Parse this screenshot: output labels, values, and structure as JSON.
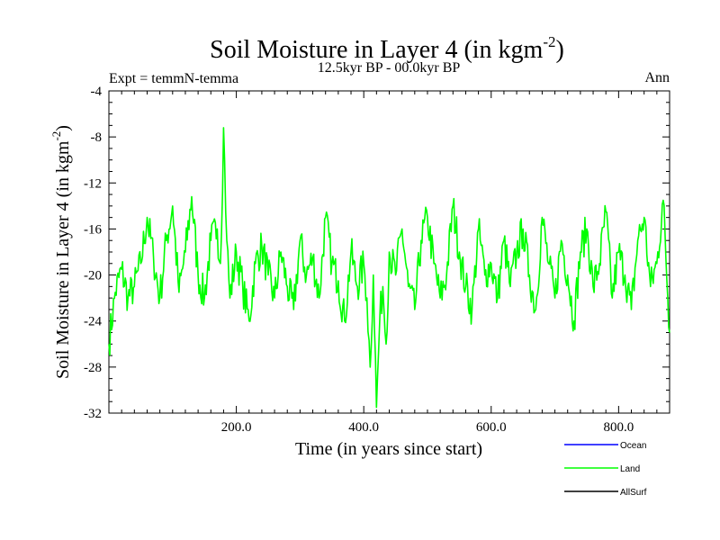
{
  "chart_data": {
    "type": "line",
    "title_main": "Soil Moisture in Layer 4 (in kgm",
    "title_sup": "-2",
    "title_close": ")",
    "subtitle": "12.5kyr BP - 00.0kyr BP",
    "expt_label": "Expt = temmN-temma",
    "season_label": "Ann",
    "xlabel": "Time (in years since start)",
    "ylabel_main": "Soil Moisture in Layer 4 (in kgm",
    "ylabel_sup": "-2",
    "ylabel_close": ")",
    "xlim": [
      0,
      880
    ],
    "ylim": [
      -32,
      -4
    ],
    "x_ticks": [
      200,
      400,
      600,
      800
    ],
    "x_tick_labels": [
      "200.0",
      "400.0",
      "600.0",
      "800.0"
    ],
    "y_ticks": [
      -4,
      -8,
      -12,
      -16,
      -20,
      -24,
      -28,
      -32
    ],
    "y_tick_labels": [
      "-4",
      "-8",
      "-12",
      "-16",
      "-20",
      "-24",
      "-28",
      "-32"
    ],
    "legend": [
      {
        "name": "Ocean",
        "color": "#0000ff"
      },
      {
        "name": "Land",
        "color": "#00ff00"
      },
      {
        "name": "AllSurf",
        "color": "#000000"
      }
    ],
    "series": [
      {
        "name": "Land",
        "color": "#00ff00",
        "x": [
          0,
          10,
          20,
          30,
          40,
          50,
          60,
          70,
          80,
          90,
          100,
          110,
          120,
          130,
          140,
          150,
          160,
          170,
          175,
          180,
          185,
          190,
          200,
          210,
          220,
          230,
          240,
          250,
          260,
          270,
          280,
          290,
          300,
          310,
          320,
          330,
          340,
          350,
          360,
          370,
          380,
          390,
          400,
          405,
          410,
          415,
          420,
          425,
          430,
          435,
          440,
          450,
          460,
          470,
          480,
          490,
          500,
          510,
          520,
          530,
          540,
          550,
          560,
          570,
          580,
          590,
          600,
          610,
          620,
          630,
          640,
          650,
          660,
          670,
          680,
          690,
          700,
          710,
          720,
          730,
          740,
          750,
          760,
          770,
          780,
          790,
          800,
          810,
          820,
          830,
          840,
          850,
          860,
          870,
          880
        ],
        "values": [
          -26,
          -21.5,
          -19.5,
          -22,
          -21,
          -19,
          -15,
          -18.5,
          -22,
          -17,
          -14,
          -21.5,
          -18,
          -13.2,
          -20,
          -22,
          -17,
          -16,
          -19,
          -7.2,
          -17,
          -22,
          -18,
          -21,
          -24,
          -19,
          -17.5,
          -20,
          -22,
          -18,
          -21,
          -23,
          -17,
          -20,
          -18.5,
          -22,
          -15,
          -19,
          -20.5,
          -24,
          -18,
          -21,
          -19,
          -22,
          -28,
          -20,
          -31.5,
          -24,
          -21,
          -26,
          -18,
          -20,
          -16,
          -21,
          -23,
          -17,
          -15,
          -19,
          -22,
          -20,
          -14,
          -18,
          -21,
          -23,
          -16,
          -20,
          -19,
          -22,
          -17,
          -21,
          -18,
          -16,
          -20,
          -23,
          -15,
          -19,
          -22,
          -17,
          -20,
          -24,
          -18,
          -16,
          -21,
          -19,
          -14.5,
          -22,
          -18,
          -20,
          -23,
          -17,
          -15,
          -21,
          -19,
          -13.5,
          -25
        ]
      }
    ]
  }
}
